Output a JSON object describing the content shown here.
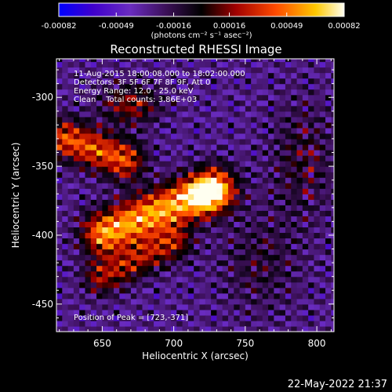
{
  "chart_data": {
    "type": "heatmap",
    "title": "Reconstructed RHESSI Image",
    "xlabel": "Heliocentric X (arcsec)",
    "ylabel": "Heliocentric Y (arcsec)",
    "xlim": [
      618,
      812
    ],
    "ylim": [
      -470,
      -272
    ],
    "x_ticks": [
      650,
      700,
      750,
      800
    ],
    "y_ticks": [
      -300,
      -350,
      -400,
      -450
    ],
    "colorbar": {
      "ticks": [
        "-0.00082",
        "-0.00049",
        "-0.00016",
        "0.00016",
        "0.00049",
        "0.00082"
      ],
      "range": [
        -0.00082,
        0.00082
      ],
      "units": "(photons cm⁻² s⁻¹ asec⁻²)"
    },
    "annotations": [
      "11-Aug-2015 18:00:08.000 to 18:02:00.000",
      "Detectors: 3F 5F 6F 7F 8F 9F, Att 0",
      "Energy Range: 12.0 - 25.0 keV",
      "Clean    Total counts: 3.86E+03"
    ],
    "peak_label": "Position of Peak = [723,-371]",
    "peak": [
      723,
      -371
    ],
    "grid": false,
    "colors": {
      "background": "#000000",
      "foreground": "#ffffff"
    }
  },
  "footer": {
    "timestamp": "22-May-2022 21:37"
  }
}
